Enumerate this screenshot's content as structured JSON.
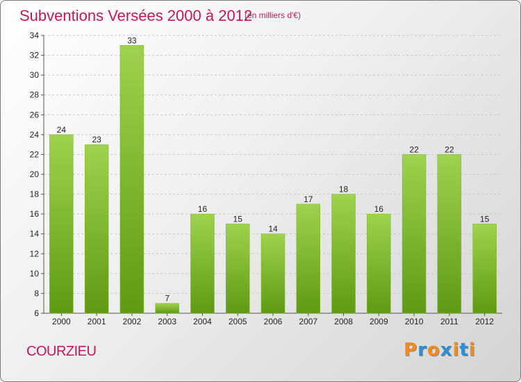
{
  "header": {
    "title": "Subventions Versées 2000 à 2012",
    "unit": "(en milliers d'€)"
  },
  "footer": {
    "commune": "COURZIEU",
    "logo": "Proxiti"
  },
  "colors": {
    "title": "#c0175c",
    "bar_light": "#9fd24e",
    "bar_dark": "#5f9a12",
    "logo_letters": [
      "#f28c1e",
      "#2a8fd6",
      "#f28c1e",
      "#2a8fd6",
      "#f28c1e",
      "#2a8fd6",
      "#f28c1e"
    ]
  },
  "chart_data": {
    "type": "bar",
    "categories": [
      "2000",
      "2001",
      "2002",
      "2003",
      "2004",
      "2005",
      "2006",
      "2007",
      "2008",
      "2009",
      "2010",
      "2011",
      "2012"
    ],
    "values": [
      24,
      23,
      33,
      7,
      16,
      15,
      14,
      17,
      18,
      16,
      22,
      22,
      15
    ],
    "title": "Subventions Versées 2000 à 2012",
    "xlabel": "",
    "ylabel": "",
    "ylim": [
      6,
      34
    ],
    "yticks": [
      6,
      8,
      10,
      12,
      14,
      16,
      18,
      20,
      22,
      24,
      26,
      28,
      30,
      32,
      34
    ],
    "grid": "horizontal dashed",
    "legend": "none"
  }
}
